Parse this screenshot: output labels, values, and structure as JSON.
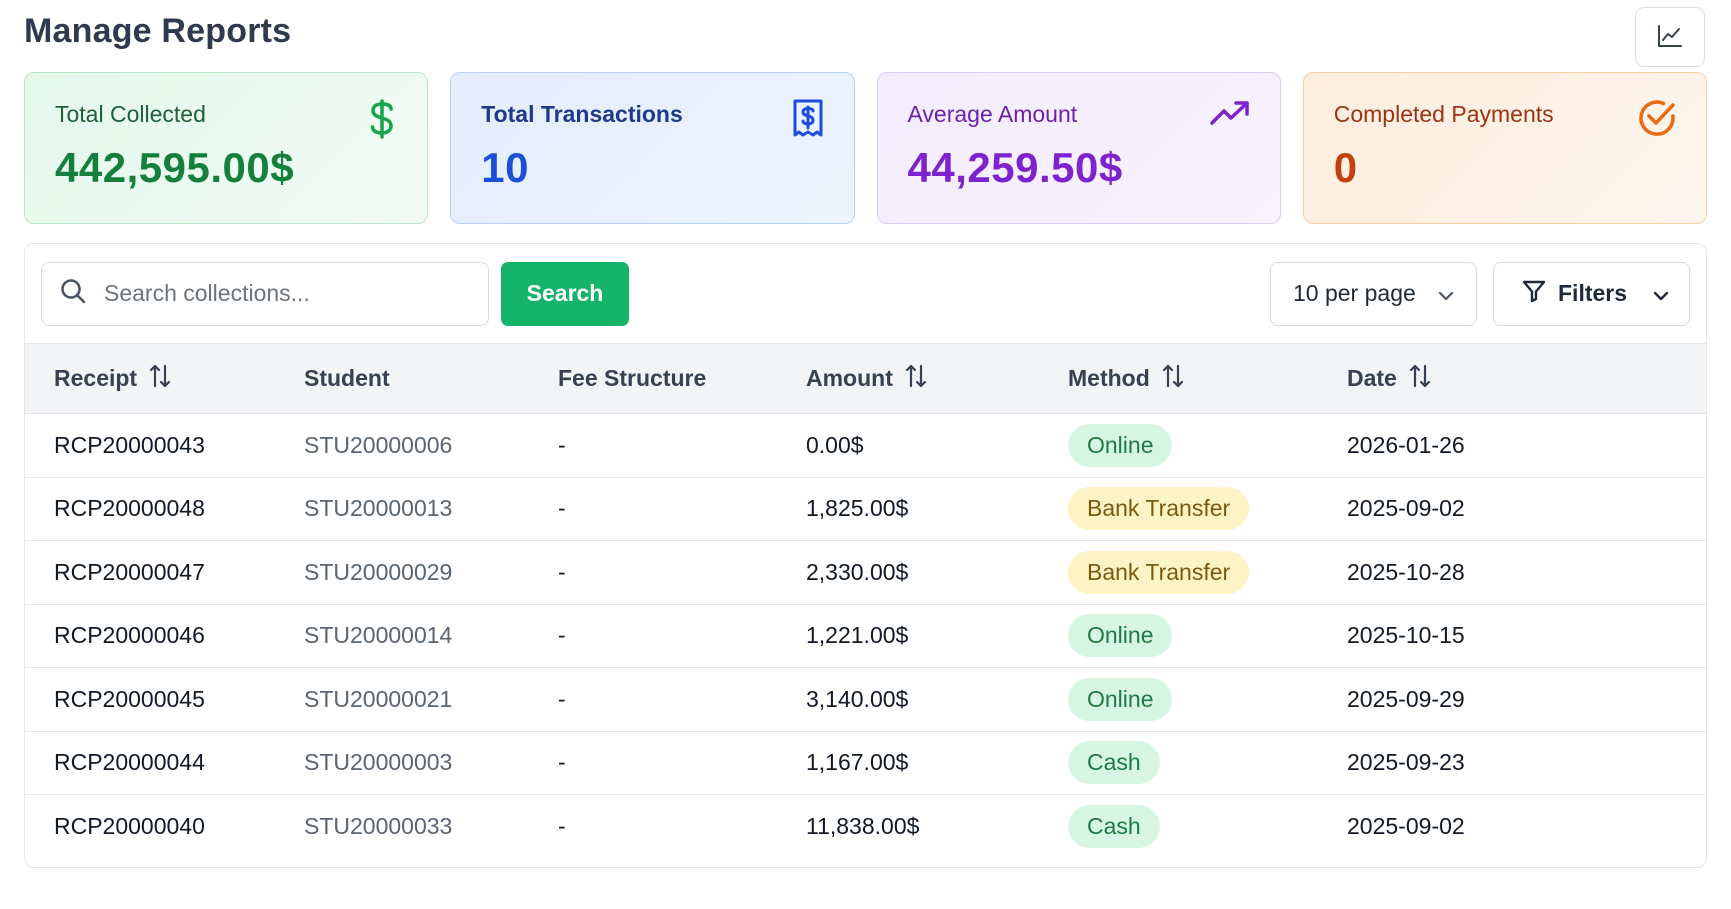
{
  "header": {
    "title": "Manage Reports"
  },
  "stats": [
    {
      "label": "Total Collected",
      "value": "442,595.00$",
      "icon": "dollar-icon"
    },
    {
      "label": "Total Transactions",
      "value": "10",
      "icon": "receipt-icon"
    },
    {
      "label": "Average Amount",
      "value": "44,259.50$",
      "icon": "trending-up-icon"
    },
    {
      "label": "Completed Payments",
      "value": "0",
      "icon": "check-circle-icon"
    }
  ],
  "toolbar": {
    "search_placeholder": "Search collections...",
    "search_button": "Search",
    "per_page": "10 per page",
    "filters": "Filters"
  },
  "table": {
    "columns": [
      "Receipt",
      "Student",
      "Fee Structure",
      "Amount",
      "Method",
      "Date"
    ],
    "rows": [
      {
        "receipt": "RCP20000043",
        "student": "STU20000006",
        "fee": "-",
        "amount": "0.00$",
        "method": "Online",
        "date": "2026-01-26"
      },
      {
        "receipt": "RCP20000048",
        "student": "STU20000013",
        "fee": "-",
        "amount": "1,825.00$",
        "method": "Bank Transfer",
        "date": "2025-09-02"
      },
      {
        "receipt": "RCP20000047",
        "student": "STU20000029",
        "fee": "-",
        "amount": "2,330.00$",
        "method": "Bank Transfer",
        "date": "2025-10-28"
      },
      {
        "receipt": "RCP20000046",
        "student": "STU20000014",
        "fee": "-",
        "amount": "1,221.00$",
        "method": "Online",
        "date": "2025-10-15"
      },
      {
        "receipt": "RCP20000045",
        "student": "STU20000021",
        "fee": "-",
        "amount": "3,140.00$",
        "method": "Online",
        "date": "2025-09-29"
      },
      {
        "receipt": "RCP20000044",
        "student": "STU20000003",
        "fee": "-",
        "amount": "1,167.00$",
        "method": "Cash",
        "date": "2025-09-23"
      },
      {
        "receipt": "RCP20000040",
        "student": "STU20000033",
        "fee": "-",
        "amount": "11,838.00$",
        "method": "Cash",
        "date": "2025-09-02"
      }
    ]
  },
  "colors": {
    "accent_green": "#16b36b",
    "badge_green_bg": "#d6f6e3",
    "badge_yellow_bg": "#fdf3c4"
  }
}
